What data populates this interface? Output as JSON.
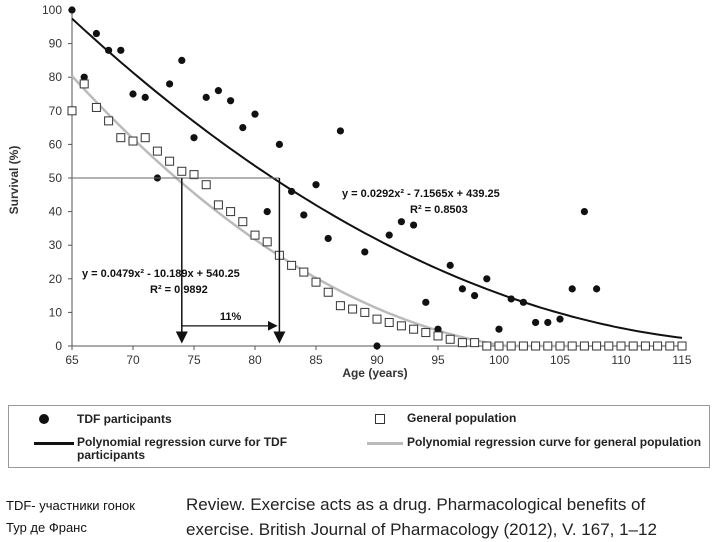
{
  "chart_data": {
    "type": "scatter",
    "xlabel": "Age (years)",
    "ylabel": "Survival (%)",
    "xlim": [
      65,
      115
    ],
    "ylim": [
      0,
      100
    ],
    "xticks": [
      65,
      70,
      75,
      80,
      85,
      90,
      95,
      100,
      105,
      110,
      115
    ],
    "yticks": [
      0,
      10,
      20,
      30,
      40,
      50,
      60,
      70,
      80,
      90,
      100
    ],
    "series": [
      {
        "name": "TDF participants",
        "marker": "filled-circle",
        "color": "#111111",
        "x": [
          65,
          66,
          67,
          68,
          69,
          70,
          71,
          72,
          73,
          74,
          75,
          76,
          77,
          78,
          79,
          80,
          81,
          82,
          83,
          84,
          85,
          86,
          87,
          88,
          89,
          90,
          91,
          92,
          93,
          94,
          95,
          96,
          97,
          98,
          99,
          100,
          101,
          102,
          103,
          104,
          105,
          106,
          107,
          108,
          109,
          110,
          111,
          112,
          113
        ],
        "y": [
          100,
          80,
          93,
          88,
          88,
          75,
          74,
          50,
          78,
          85,
          62,
          74,
          76,
          73,
          65,
          69,
          40,
          60,
          46,
          39,
          48,
          32,
          64,
          11,
          28,
          0,
          33,
          37,
          36,
          13,
          5,
          24,
          17,
          15,
          20,
          5,
          14,
          13,
          7,
          7,
          8,
          17,
          40,
          17,
          0,
          0,
          0,
          0,
          0
        ]
      },
      {
        "name": "General population",
        "marker": "open-square",
        "color": "#333333",
        "x": [
          65,
          66,
          67,
          68,
          69,
          70,
          71,
          72,
          73,
          74,
          75,
          76,
          77,
          78,
          79,
          80,
          81,
          82,
          83,
          84,
          85,
          86,
          87,
          88,
          89,
          90,
          91,
          92,
          93,
          94,
          95,
          96,
          97,
          98,
          99,
          100,
          101,
          102,
          103,
          104,
          105,
          106,
          107,
          108,
          109,
          110,
          111,
          112,
          113,
          114,
          115
        ],
        "y": [
          70,
          78,
          71,
          67,
          62,
          61,
          62,
          58,
          55,
          52,
          51,
          48,
          42,
          40,
          37,
          33,
          31,
          27,
          24,
          22,
          19,
          16,
          12,
          11,
          10,
          8,
          7,
          6,
          5,
          4,
          3,
          2,
          1,
          1,
          0,
          0,
          0,
          0,
          0,
          0,
          0,
          0,
          0,
          0,
          0,
          0,
          0,
          0,
          0,
          0,
          0
        ]
      }
    ],
    "curves": [
      {
        "name": "Polynomial regression curve for TDF participants",
        "color": "#111111",
        "coeffs": [
          0.0292,
          -7.1565,
          439.25
        ],
        "x_range": [
          65,
          115
        ],
        "equation": "y = 0.0292x² - 7.1565x + 439.25",
        "r2": "R² = 0.8503"
      },
      {
        "name": "Polynomial regression curve for general population",
        "color": "#bbbbbb",
        "coeffs": [
          0.0479,
          -10.189,
          540.25
        ],
        "x_range": [
          65,
          106.35
        ],
        "equation": "y = 0.0479x² - 10.189x + 540.25",
        "r2": "R² = 0.9892"
      }
    ],
    "annotation": {
      "label": "11%",
      "y_level": 50,
      "x_general": 74,
      "x_tdf": 82
    }
  },
  "legend": {
    "tdf_participants": "TDF participants",
    "general_population": "General population",
    "tdf_curve": "Polynomial regression curve for TDF participants",
    "general_curve": "Polynomial regression curve for general population"
  },
  "caption": {
    "left_line1": "TDF- участники гонок",
    "left_line2": "Тур де Франс",
    "right_line1": "Review. Exercise acts as a drug. Pharmacological benefits of",
    "right_line2": "exercise. British Journal of Pharmacology (2012), V. 167, 1–12"
  }
}
